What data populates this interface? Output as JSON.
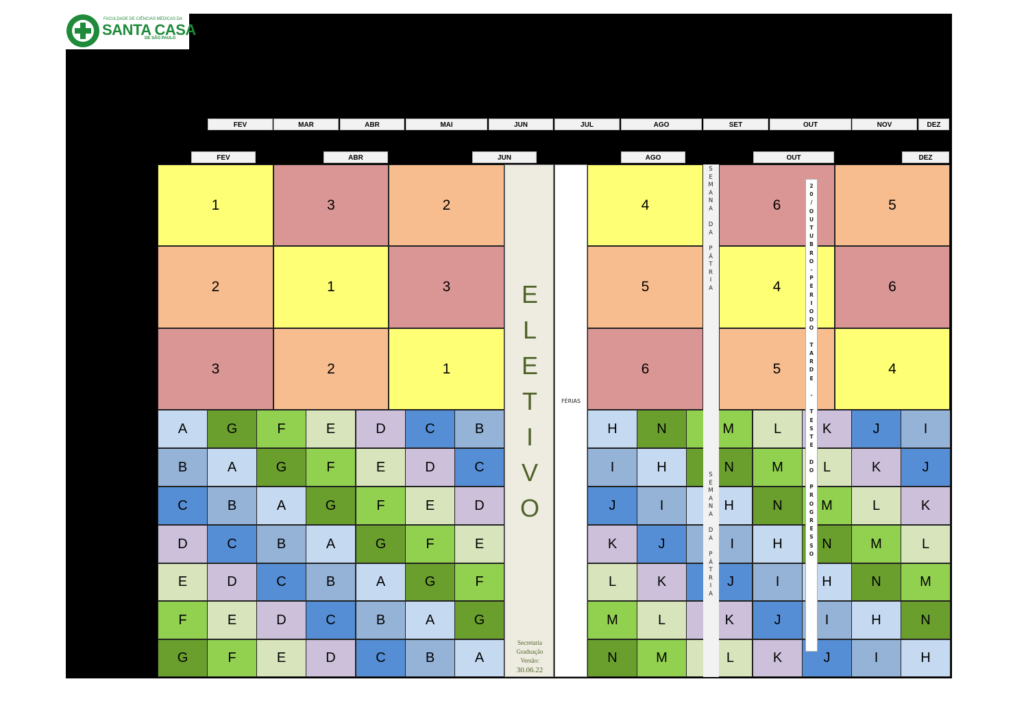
{
  "logo": {
    "line1": "FACULDADE DE CIÊNCIAS MÉDICAS DA",
    "line2": "SANTA CASA",
    "line3": "DE SÃO PAULO",
    "color": "#1e8a3a"
  },
  "months_top": [
    "FEV",
    "MAR",
    "ABR",
    "MAI",
    "JUN",
    "JUL",
    "AGO",
    "SET",
    "OUT",
    "NOV",
    "DEZ"
  ],
  "months_second": [
    "FEV",
    "ABR",
    "JUN",
    "AGO",
    "OUT",
    "DEZ"
  ],
  "left_upper_rows": [
    [
      "1",
      "3",
      "2"
    ],
    [
      "2",
      "1",
      "3"
    ],
    [
      "3",
      "2",
      "1"
    ]
  ],
  "right_upper_rows": [
    [
      "4",
      "6",
      "5"
    ],
    [
      "5",
      "4",
      "6"
    ],
    [
      "6",
      "5",
      "4"
    ]
  ],
  "left_lower_rows": [
    [
      "A",
      "G",
      "F",
      "E",
      "D",
      "C",
      "B"
    ],
    [
      "B",
      "A",
      "G",
      "F",
      "E",
      "D",
      "C"
    ],
    [
      "C",
      "B",
      "A",
      "G",
      "F",
      "E",
      "D"
    ],
    [
      "D",
      "C",
      "B",
      "A",
      "G",
      "F",
      "E"
    ],
    [
      "E",
      "D",
      "C",
      "B",
      "A",
      "G",
      "F"
    ],
    [
      "F",
      "E",
      "D",
      "C",
      "B",
      "A",
      "G"
    ],
    [
      "G",
      "F",
      "E",
      "D",
      "C",
      "B",
      "A"
    ]
  ],
  "right_lower_rows": [
    [
      "H",
      "N",
      "M",
      "L",
      "K",
      "J",
      "I"
    ],
    [
      "I",
      "H",
      "N",
      "M",
      "L",
      "K",
      "J"
    ],
    [
      "J",
      "I",
      "H",
      "N",
      "M",
      "L",
      "K"
    ],
    [
      "K",
      "J",
      "I",
      "H",
      "N",
      "M",
      "L"
    ],
    [
      "L",
      "K",
      "J",
      "I",
      "H",
      "N",
      "M"
    ],
    [
      "M",
      "L",
      "K",
      "J",
      "I",
      "H",
      "N"
    ],
    [
      "N",
      "M",
      "L",
      "K",
      "J",
      "I",
      "H"
    ]
  ],
  "eletivo": "ELETIVO",
  "ferias": "FÉRIAS",
  "semana_patria": "SEMANA DA PÁTRIA",
  "progresso_note": "20/OUTUBRO-PERIODO TARDE - TESTE DO PROGRESSO",
  "secretaria": {
    "line1": "Secretaria",
    "line2": "Graduação",
    "line3": "Versão:",
    "line4": "30.06.22"
  },
  "colors": {
    "yellow": "#ffff75",
    "salmon": "#f8bd8f",
    "rose": "#da9694",
    "A": "#c5d9f1",
    "B": "#95b3d7",
    "C": "#558ed5",
    "D": "#ccc0da",
    "E": "#d8e4bc",
    "F": "#92d050",
    "G": "#6a9f2e",
    "H": "#c5d9f1",
    "I": "#95b3d7",
    "J": "#558ed5",
    "K": "#ccc0da",
    "L": "#d8e4bc",
    "M": "#92d050",
    "N": "#6a9f2e",
    "eletivo_bg": "#eeece1",
    "eletivo_text": "#4f6228"
  }
}
